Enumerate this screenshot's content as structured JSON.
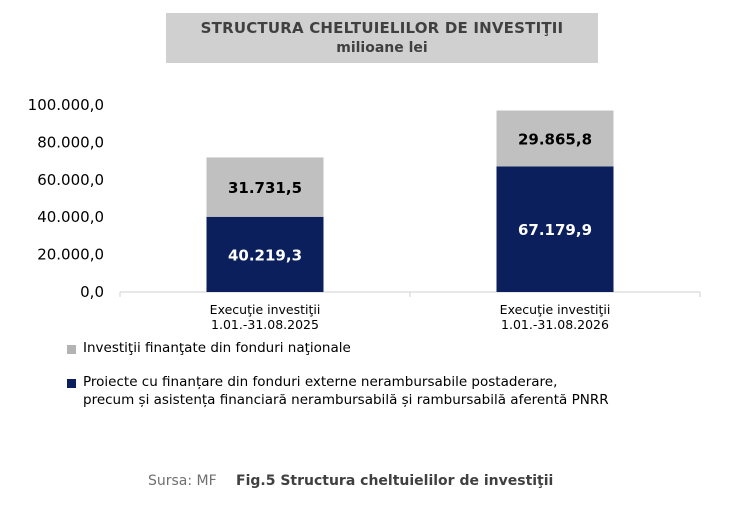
{
  "header": {
    "title": "STRUCTURA CHELTUIELILOR DE INVESTIŢII",
    "subtitle": "milioane lei"
  },
  "chart_data": {
    "type": "bar",
    "stacked": true,
    "ylim": [
      0,
      100000
    ],
    "yticks": [
      "0,0",
      "20.000,0",
      "40.000,0",
      "60.000,0",
      "80.000,0",
      "100.000,0"
    ],
    "ytick_values": [
      0,
      20000,
      40000,
      60000,
      80000,
      100000
    ],
    "categories": [
      [
        "Execuţie investiţii",
        "1.01.-31.08.2025"
      ],
      [
        "Execuţie investiţii",
        "1.01.-31.08.2026"
      ]
    ],
    "series": [
      {
        "name": "Proiecte cu finanțare din fonduri externe nerambursabile postaderare, precum și asistența financiară nerambursabilă și rambursabilă aferentă PNRR",
        "color": "#0a1f5c",
        "values": [
          40219.3,
          67179.9
        ],
        "labels": [
          "40.219,3",
          "67.179,9"
        ],
        "label_color": "#ffffff"
      },
      {
        "name": "Investiţii finanţate din fonduri naţionale",
        "color": "#c0c0c0",
        "values": [
          31731.5,
          29865.8
        ],
        "labels": [
          "31.731,5",
          "29.865,8"
        ],
        "label_color": "#000000"
      }
    ],
    "grid": false
  },
  "legend": {
    "items": [
      {
        "color": "#b3b3b3",
        "lines": [
          "Investiţii finanţate din fonduri naţionale"
        ]
      },
      {
        "color": "#0a1f5c",
        "lines": [
          "Proiecte cu finanțare din fonduri externe nerambursabile postaderare,",
          "precum și asistența financiară nerambursabilă și rambursabilă aferentă PNRR"
        ]
      }
    ]
  },
  "footer": {
    "source": "Sursa: MF",
    "caption": "Fig.5 Structura cheltuielilor de investiţii"
  }
}
